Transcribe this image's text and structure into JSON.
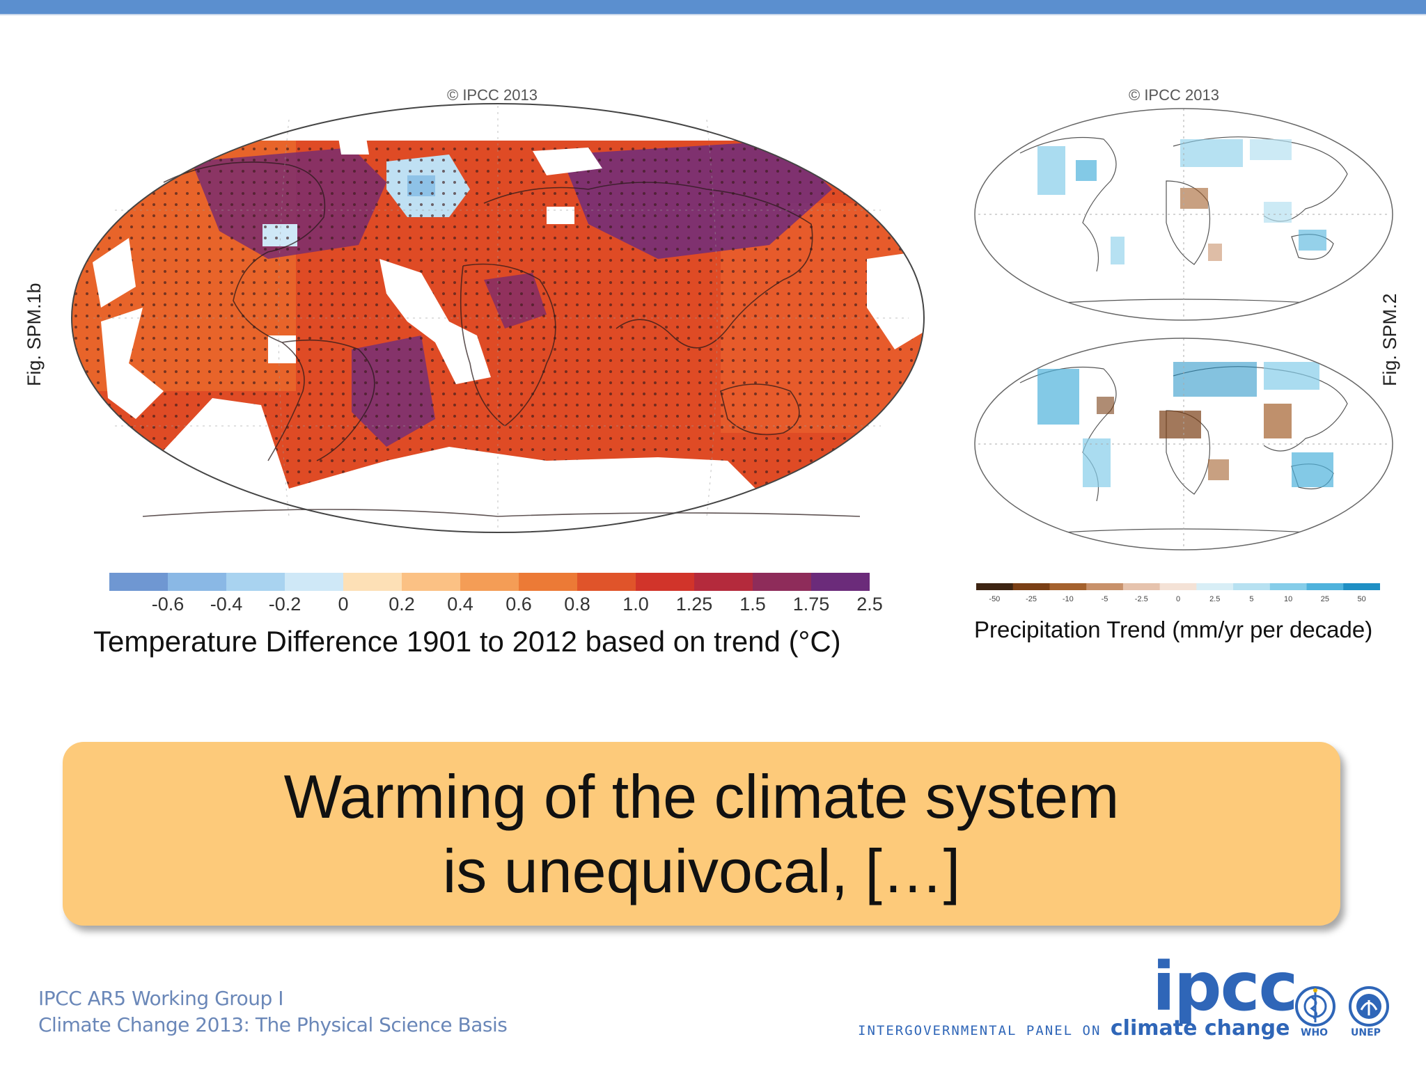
{
  "slide": {
    "left_figure": {
      "copyright": "© IPCC 2013",
      "figure_id": "Fig. SPM.1b",
      "legend_title": "Temperature Difference 1901 to 2012 based on trend (°C)",
      "legend_ticks": [
        "-0.6",
        "-0.4",
        "-0.2",
        "0",
        "0.2",
        "0.4",
        "0.6",
        "0.8",
        "1.0",
        "1.25",
        "1.5",
        "1.75",
        "2.5"
      ],
      "legend_colors": [
        "#6f97d2",
        "#8ab8e5",
        "#a9d3f0",
        "#cfe8f7",
        "#fde0b6",
        "#fbc184",
        "#f49d56",
        "#ec7a36",
        "#e0542a",
        "#d1342a",
        "#b42a3c",
        "#8e2c5a",
        "#6b2b7a"
      ]
    },
    "right_figure": {
      "copyright": "© IPCC 2013",
      "figure_id": "Fig. SPM.2",
      "legend_title": "Precipitation Trend (mm/yr per decade)",
      "legend_ticks": [
        "-50",
        "-25",
        "-10",
        "-5",
        "-2.5",
        "0",
        "2.5",
        "5",
        "10",
        "25",
        "50"
      ],
      "legend_colors": [
        "#3d2412",
        "#7a3f15",
        "#a4612d",
        "#c8916a",
        "#e6c3ad",
        "#f4e2d6",
        "#d8eef6",
        "#b7e1f1",
        "#86cde9",
        "#4fb2dc",
        "#1f8fc4"
      ]
    },
    "statement": {
      "line1": "Warming of the climate system",
      "line2": "is unequivocal, […]"
    },
    "footer": {
      "line1": "IPCC AR5 Working Group I",
      "line2": "Climate Change 2013:  The Physical Science Basis",
      "ipcc_logo_text": "ipcc",
      "ipcc_subtitle_pre": "INTERGOVERNMENTAL PANEL ON",
      "ipcc_subtitle_emph": "climate change",
      "org1": "WHO",
      "org2": "UNEP"
    },
    "colors": {
      "top_bar": "#5b8fcf",
      "banner": "#fdca7a",
      "ipcc_blue": "#2f66b8",
      "footer_text": "#6a87b8"
    }
  }
}
